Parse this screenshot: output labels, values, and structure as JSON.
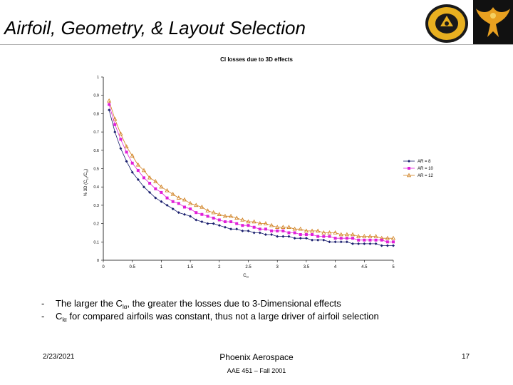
{
  "slide": {
    "title": "Airfoil, Geometry, & Layout Selection",
    "bullets": [
      {
        "dash": "-",
        "pre": "The larger the C",
        "sub": "lα",
        "post": ", the greater the losses due to 3-Dimensional effects"
      },
      {
        "dash": "-",
        "pre": "C",
        "sub": "lα",
        "post": " for compared airfoils was constant, thus not a large driver of airfoil selection"
      }
    ],
    "footer": {
      "date": "2/23/2021",
      "company": "Phoenix Aerospace",
      "course": "AAE 451 – Fall 2001",
      "page": "17"
    }
  },
  "colors": {
    "ar8": "#1a1f6e",
    "ar10": "#e020d8",
    "ar12": "#d08020",
    "title_rule": "#b0b0b0",
    "grid": "#000000"
  },
  "chart_data": {
    "type": "line",
    "title": "Cl losses due to 3D effects",
    "xlabel": "C",
    "xlabel_sub": "lα",
    "ylabel": "% 3D (C",
    "ylabel_sub1": "Lα",
    "ylabel_mid": "/C",
    "ylabel_sub2": "lα",
    "ylabel_end": ")",
    "xlim": [
      0,
      5
    ],
    "ylim": [
      0,
      1
    ],
    "xticks": [
      "0",
      "0.5",
      "1",
      "1.5",
      "2",
      "2.5",
      "3",
      "3.5",
      "4",
      "4.5",
      "5"
    ],
    "yticks": [
      "0",
      "0.1",
      "0.2",
      "0.3",
      "0.4",
      "0.5",
      "0.6",
      "0.7",
      "0.8",
      "0.9",
      "1"
    ],
    "grid": false,
    "legend_position": "right",
    "x": [
      0.1,
      0.2,
      0.3,
      0.4,
      0.5,
      0.6,
      0.7,
      0.8,
      0.9,
      1.0,
      1.1,
      1.2,
      1.3,
      1.4,
      1.5,
      1.6,
      1.7,
      1.8,
      1.9,
      2.0,
      2.1,
      2.2,
      2.3,
      2.4,
      2.5,
      2.6,
      2.7,
      2.8,
      2.9,
      3.0,
      3.1,
      3.2,
      3.3,
      3.4,
      3.5,
      3.6,
      3.7,
      3.8,
      3.9,
      4.0,
      4.1,
      4.2,
      4.3,
      4.4,
      4.5,
      4.6,
      4.7,
      4.8,
      4.9,
      5.0
    ],
    "series": [
      {
        "name": "AR = 8",
        "marker": "diamond",
        "values": [
          0.82,
          0.7,
          0.61,
          0.54,
          0.48,
          0.44,
          0.4,
          0.37,
          0.34,
          0.32,
          0.3,
          0.28,
          0.26,
          0.25,
          0.24,
          0.22,
          0.21,
          0.2,
          0.2,
          0.19,
          0.18,
          0.17,
          0.17,
          0.16,
          0.16,
          0.15,
          0.15,
          0.14,
          0.14,
          0.13,
          0.13,
          0.13,
          0.12,
          0.12,
          0.12,
          0.11,
          0.11,
          0.11,
          0.1,
          0.1,
          0.1,
          0.1,
          0.09,
          0.09,
          0.09,
          0.09,
          0.09,
          0.08,
          0.08,
          0.08
        ]
      },
      {
        "name": "AR = 10",
        "marker": "square",
        "values": [
          0.85,
          0.74,
          0.66,
          0.59,
          0.53,
          0.49,
          0.45,
          0.42,
          0.39,
          0.37,
          0.34,
          0.32,
          0.31,
          0.29,
          0.28,
          0.26,
          0.25,
          0.24,
          0.23,
          0.22,
          0.21,
          0.21,
          0.2,
          0.19,
          0.19,
          0.18,
          0.17,
          0.17,
          0.16,
          0.16,
          0.16,
          0.15,
          0.15,
          0.14,
          0.14,
          0.14,
          0.13,
          0.13,
          0.13,
          0.12,
          0.12,
          0.12,
          0.12,
          0.11,
          0.11,
          0.11,
          0.11,
          0.11,
          0.1,
          0.1
        ]
      },
      {
        "name": "AR = 12",
        "marker": "triangle",
        "values": [
          0.87,
          0.77,
          0.69,
          0.62,
          0.57,
          0.52,
          0.49,
          0.45,
          0.43,
          0.4,
          0.38,
          0.36,
          0.34,
          0.33,
          0.31,
          0.3,
          0.29,
          0.27,
          0.26,
          0.25,
          0.24,
          0.24,
          0.23,
          0.22,
          0.21,
          0.21,
          0.2,
          0.2,
          0.19,
          0.18,
          0.18,
          0.18,
          0.17,
          0.17,
          0.16,
          0.16,
          0.16,
          0.15,
          0.15,
          0.15,
          0.14,
          0.14,
          0.14,
          0.13,
          0.13,
          0.13,
          0.13,
          0.12,
          0.12,
          0.12
        ]
      }
    ]
  }
}
